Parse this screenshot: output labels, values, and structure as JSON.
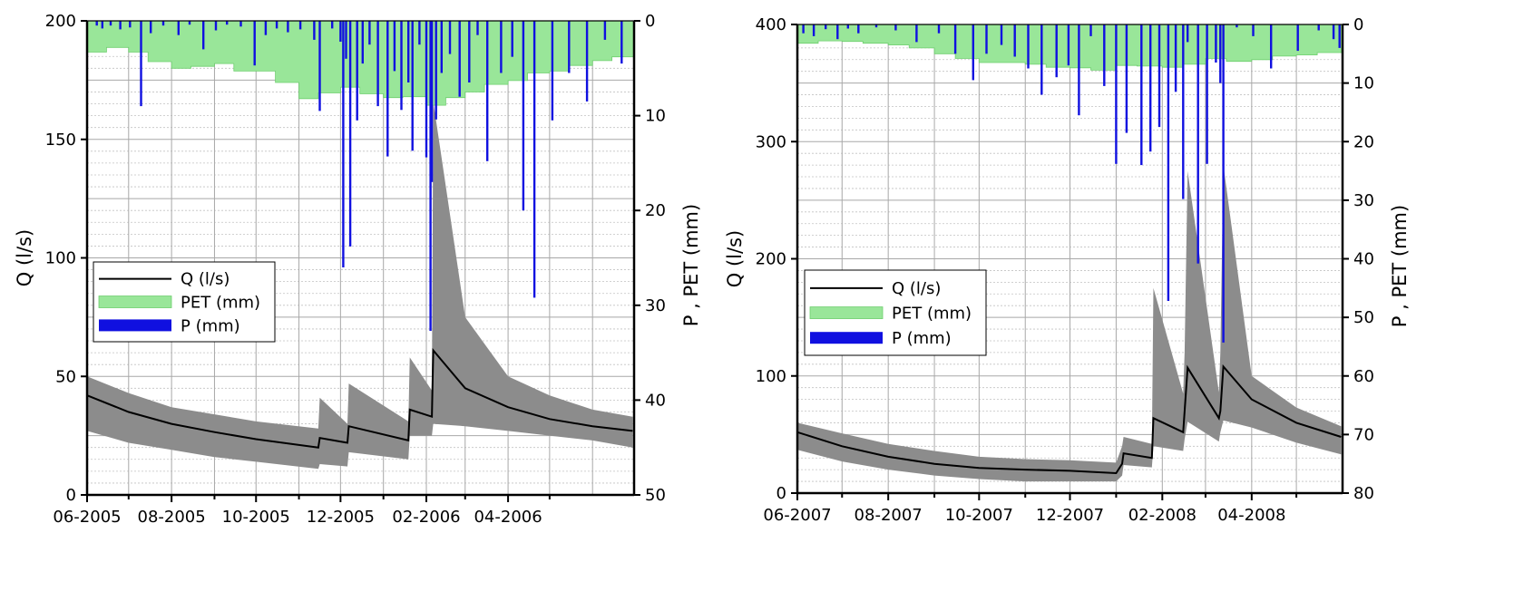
{
  "chart_data": [
    {
      "type": "line",
      "title": "",
      "xlabel": "",
      "ylabel": "Q (l/s)",
      "ylabel_right": "P , PET (mm)",
      "ylim": [
        0,
        200
      ],
      "ylim_right_inverted": [
        0,
        50
      ],
      "yticks": [
        "0",
        "50",
        "100",
        "150",
        "200"
      ],
      "yticks_right": [
        "0",
        "10",
        "20",
        "30",
        "40",
        "50"
      ],
      "xticks": [
        "06-2005",
        "08-2005",
        "10-2005",
        "12-2005",
        "02-2006",
        "04-2006"
      ],
      "grid": true,
      "legend": {
        "position": "left-middle",
        "entries": [
          "Q (l/s)",
          "PET (mm)",
          "P (mm)"
        ]
      },
      "colors": {
        "q": "#000000",
        "band": "#8c8c8c",
        "pet": "#99e699",
        "p": "#1010e0"
      },
      "series": [
        {
          "name": "Q (l/s)",
          "axis": "left",
          "x": [
            "2005-06-01",
            "2005-07-01",
            "2005-08-01",
            "2005-09-01",
            "2005-10-01",
            "2005-11-15",
            "2005-11-16",
            "2005-12-06",
            "2005-12-07",
            "2006-01-19",
            "2006-01-20",
            "2006-02-05",
            "2006-02-06",
            "2006-03-01",
            "2006-04-01",
            "2006-05-01",
            "2006-06-01",
            "2006-06-30"
          ],
          "y": [
            42,
            35,
            30,
            26.5,
            23.5,
            20,
            24,
            22,
            29,
            23,
            36,
            33,
            61,
            45,
            37,
            32,
            29,
            27
          ],
          "band_low": [
            27,
            22,
            19,
            16,
            14,
            11,
            13,
            12,
            18,
            15,
            25,
            25,
            30,
            29,
            27,
            25,
            23,
            20
          ],
          "band_high": [
            50,
            43,
            37,
            34,
            31,
            28,
            41,
            30,
            47,
            31,
            58,
            44,
            166,
            75,
            50,
            42,
            36,
            33
          ]
        },
        {
          "name": "PET (mm)",
          "axis": "right",
          "type": "step",
          "x": [
            "2005-06-01",
            "2005-06-15",
            "2005-07-01",
            "2005-07-15",
            "2005-08-01",
            "2005-08-15",
            "2005-09-01",
            "2005-09-15",
            "2005-10-01",
            "2005-10-15",
            "2005-11-01",
            "2005-11-15",
            "2005-12-01",
            "2005-12-15",
            "2006-01-01",
            "2006-01-15",
            "2006-02-01",
            "2006-02-15",
            "2006-03-01",
            "2006-03-15",
            "2006-04-01",
            "2006-04-15",
            "2006-05-01",
            "2006-05-15",
            "2006-06-01",
            "2006-06-15"
          ],
          "y": [
            3.3,
            2.8,
            3.3,
            4.3,
            5.0,
            4.8,
            4.5,
            5.3,
            5.3,
            6.5,
            8.2,
            7.6,
            7.0,
            7.7,
            8.1,
            8.0,
            8.9,
            8.1,
            7.5,
            6.7,
            6.3,
            5.5,
            5.3,
            4.7,
            4.2,
            3.8
          ]
        },
        {
          "name": "P (mm)",
          "axis": "right",
          "type": "bar",
          "x": [
            "2005-06-08",
            "2005-06-12",
            "2005-06-18",
            "2005-06-25",
            "2005-07-02",
            "2005-07-10",
            "2005-07-17",
            "2005-07-26",
            "2005-08-06",
            "2005-08-14",
            "2005-08-24",
            "2005-09-02",
            "2005-09-10",
            "2005-09-20",
            "2005-09-30",
            "2005-10-08",
            "2005-10-16",
            "2005-10-24",
            "2005-11-02",
            "2005-11-12",
            "2005-11-16",
            "2005-11-25",
            "2005-12-01",
            "2005-12-03",
            "2005-12-05",
            "2005-12-08",
            "2005-12-13",
            "2005-12-17",
            "2005-12-22",
            "2005-12-28",
            "2006-01-04",
            "2006-01-09",
            "2006-01-14",
            "2006-01-19",
            "2006-01-22",
            "2006-01-27",
            "2006-02-01",
            "2006-02-04",
            "2006-02-05",
            "2006-02-08",
            "2006-02-12",
            "2006-02-18",
            "2006-02-25",
            "2006-03-04",
            "2006-03-10",
            "2006-03-17",
            "2006-03-27",
            "2006-04-04",
            "2006-04-12",
            "2006-04-20",
            "2006-05-03",
            "2006-05-15",
            "2006-05-28",
            "2006-06-10",
            "2006-06-22"
          ],
          "y": [
            0.5,
            0.8,
            0.5,
            0.9,
            0.7,
            9.0,
            1.3,
            0.5,
            1.5,
            0.4,
            3.0,
            1.0,
            0.4,
            0.6,
            4.7,
            1.5,
            0.8,
            1.2,
            0.9,
            2.0,
            9.5,
            0.8,
            2.2,
            26.0,
            4.0,
            23.8,
            10.5,
            4.5,
            2.5,
            9.0,
            14.3,
            5.3,
            9.4,
            6.5,
            13.7,
            2.5,
            14.4,
            32.7,
            17.0,
            10.4,
            5.5,
            3.5,
            8.0,
            6.5,
            1.5,
            14.8,
            5.5,
            3.8,
            20.0,
            29.2,
            10.5,
            5.5,
            8.5,
            2.0,
            4.5
          ]
        }
      ]
    },
    {
      "type": "line",
      "title": "",
      "xlabel": "",
      "ylabel": "Q (l/s)",
      "ylabel_right": "P , PET (mm)",
      "ylim": [
        0,
        400
      ],
      "ylim_right_inverted": [
        0,
        80
      ],
      "yticks": [
        "0",
        "100",
        "200",
        "300",
        "400"
      ],
      "yticks_right": [
        "0",
        "10",
        "20",
        "30",
        "40",
        "50",
        "60",
        "70",
        "80"
      ],
      "xticks": [
        "06-2007",
        "08-2007",
        "10-2007",
        "12-2007",
        "02-2008",
        "04-2008"
      ],
      "grid": true,
      "legend": {
        "position": "left-middle",
        "entries": [
          "Q (l/s)",
          "PET (mm)",
          "P (mm)"
        ]
      },
      "colors": {
        "q": "#000000",
        "band": "#8c8c8c",
        "pet": "#99e699",
        "p": "#1010e0"
      },
      "series": [
        {
          "name": "Q (l/s)",
          "axis": "left",
          "x": [
            "2007-06-01",
            "2007-07-01",
            "2007-08-01",
            "2007-09-01",
            "2007-10-01",
            "2007-11-01",
            "2007-12-01",
            "2008-01-01",
            "2008-01-05",
            "2008-01-06",
            "2008-01-25",
            "2008-01-26",
            "2008-02-15",
            "2008-02-16",
            "2008-02-18",
            "2008-03-10",
            "2008-03-11",
            "2008-03-13",
            "2008-04-01",
            "2008-05-01",
            "2008-05-31"
          ],
          "y": [
            52,
            40,
            31,
            25,
            21.5,
            20,
            19,
            17,
            25,
            34,
            30,
            64,
            52,
            70,
            107,
            64,
            70,
            108,
            80,
            60,
            48
          ],
          "band_low": [
            37,
            27,
            20,
            15,
            12,
            10,
            10,
            10,
            15,
            24,
            22,
            40,
            36,
            46,
            61,
            44,
            52,
            62,
            56,
            43,
            33
          ],
          "band_high": [
            60,
            51,
            42,
            36,
            31,
            29,
            28,
            26,
            40,
            48,
            42,
            175,
            85,
            120,
            275,
            86,
            120,
            280,
            100,
            73,
            57
          ]
        },
        {
          "name": "PET (mm)",
          "axis": "right",
          "type": "step",
          "x": [
            "2007-06-01",
            "2007-06-15",
            "2007-07-01",
            "2007-07-15",
            "2007-08-01",
            "2007-08-15",
            "2007-09-01",
            "2007-09-15",
            "2007-10-01",
            "2007-10-15",
            "2007-11-01",
            "2007-11-15",
            "2007-12-01",
            "2007-12-15",
            "2008-01-01",
            "2008-01-15",
            "2008-02-01",
            "2008-02-15",
            "2008-03-01",
            "2008-03-15",
            "2008-04-01",
            "2008-04-15",
            "2008-05-01",
            "2008-05-15"
          ],
          "y": [
            3.2,
            2.8,
            2.9,
            3.2,
            3.5,
            4.0,
            5.0,
            5.8,
            6.5,
            6.5,
            6.8,
            7.3,
            7.4,
            7.8,
            7.0,
            7.1,
            7.3,
            6.8,
            5.8,
            6.3,
            6.0,
            5.4,
            5.2,
            4.8
          ]
        },
        {
          "name": "P (mm)",
          "axis": "right",
          "type": "bar",
          "x": [
            "2007-06-05",
            "2007-06-12",
            "2007-06-20",
            "2007-06-28",
            "2007-07-05",
            "2007-07-12",
            "2007-07-24",
            "2007-08-06",
            "2007-08-20",
            "2007-09-04",
            "2007-09-15",
            "2007-09-27",
            "2007-10-06",
            "2007-10-16",
            "2007-10-25",
            "2007-11-03",
            "2007-11-12",
            "2007-11-22",
            "2007-11-30",
            "2007-12-07",
            "2007-12-15",
            "2007-12-24",
            "2008-01-01",
            "2008-01-08",
            "2008-01-18",
            "2008-01-24",
            "2008-01-30",
            "2008-02-05",
            "2008-02-10",
            "2008-02-15",
            "2008-02-18",
            "2008-02-25",
            "2008-03-02",
            "2008-03-08",
            "2008-03-11",
            "2008-03-13",
            "2008-03-22",
            "2008-04-02",
            "2008-04-14",
            "2008-05-02",
            "2008-05-16",
            "2008-05-26",
            "2008-05-30"
          ],
          "y": [
            1.5,
            2.0,
            0.8,
            2.5,
            0.7,
            1.5,
            0.5,
            1.0,
            3.0,
            1.5,
            5.0,
            9.5,
            5.0,
            3.5,
            5.5,
            7.5,
            12.0,
            9.0,
            7.0,
            15.5,
            2.0,
            10.5,
            23.8,
            18.5,
            24.0,
            21.7,
            17.5,
            47.2,
            11.5,
            29.8,
            3.0,
            40.8,
            23.8,
            6.5,
            10.0,
            54.3,
            0.5,
            2.0,
            7.5,
            4.5,
            1.0,
            2.5,
            4.0
          ]
        }
      ]
    }
  ]
}
